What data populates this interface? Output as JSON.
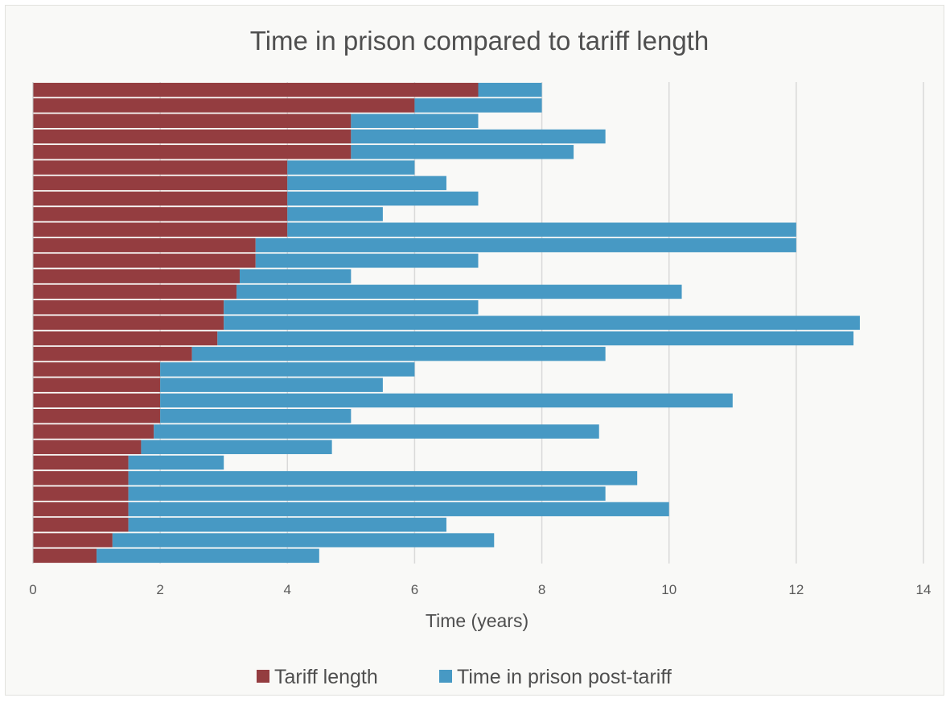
{
  "chart_data": {
    "type": "bar",
    "orientation": "horizontal",
    "stacked": true,
    "title": "Time in prison compared to tariff length",
    "xlabel": "Time (years)",
    "ylabel": "",
    "xlim": [
      0,
      14
    ],
    "xticks": [
      "0",
      "2",
      "4",
      "6",
      "8",
      "10",
      "12",
      "14"
    ],
    "grid": "vertical",
    "legend_position": "bottom",
    "series": [
      {
        "name": "Tariff length",
        "color": "#943d40",
        "values": [
          7,
          6,
          5,
          5,
          5,
          4,
          4,
          4,
          4,
          4,
          3.5,
          3.5,
          3.25,
          3.2,
          3,
          3,
          2.9,
          2.5,
          2,
          2,
          2,
          2,
          1.9,
          1.7,
          1.5,
          1.5,
          1.5,
          1.5,
          1.5,
          1.25,
          1
        ]
      },
      {
        "name": "Time in prison post-tariff",
        "color": "#4799c4",
        "values": [
          1,
          2,
          2,
          4,
          3.5,
          2,
          2.5,
          3,
          1.5,
          8,
          8.5,
          3.5,
          1.75,
          7,
          4,
          10,
          10,
          6.5,
          4,
          3.5,
          9,
          3,
          7,
          3,
          1.5,
          8,
          7.5,
          8.5,
          5,
          6,
          3.5
        ]
      }
    ]
  }
}
